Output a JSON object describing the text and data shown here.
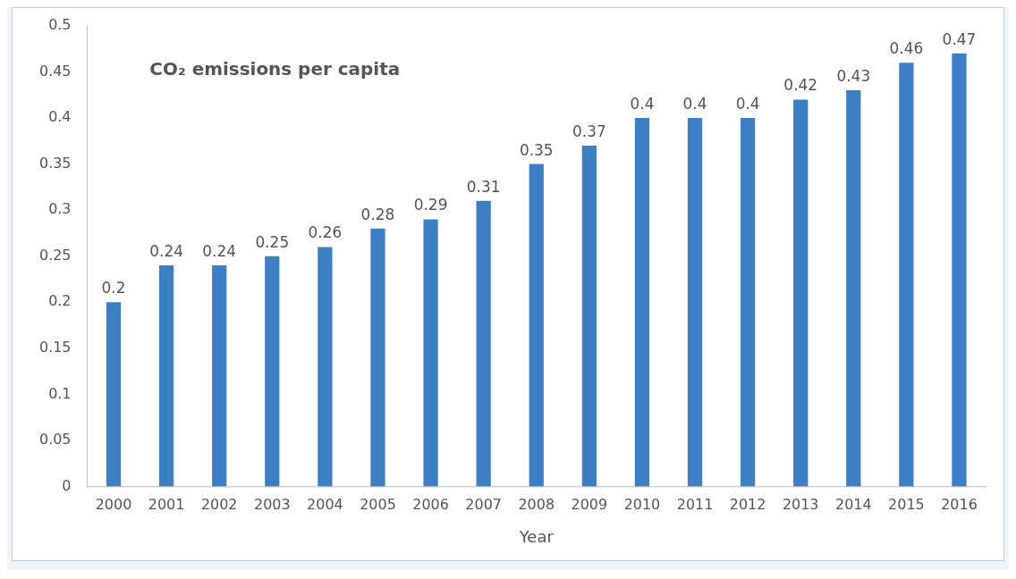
{
  "chart_data": {
    "type": "bar",
    "title": "CO₂ emissions per capita",
    "xlabel": "Year",
    "categories": [
      "2000",
      "2001",
      "2002",
      "2003",
      "2004",
      "2005",
      "2006",
      "2007",
      "2008",
      "2009",
      "2010",
      "2011",
      "2012",
      "2013",
      "2014",
      "2015",
      "2016"
    ],
    "values": [
      0.2,
      0.24,
      0.24,
      0.25,
      0.26,
      0.28,
      0.29,
      0.31,
      0.35,
      0.37,
      0.4,
      0.4,
      0.4,
      0.42,
      0.43,
      0.46,
      0.47
    ],
    "color": "#3d7fc4",
    "ylim": [
      0,
      0.5
    ],
    "yticks": [
      0,
      0.05,
      0.1,
      0.15,
      0.2,
      0.25,
      0.3,
      0.35,
      0.4,
      0.45,
      0.5
    ],
    "data_labels": true,
    "grid": false,
    "legend": false
  }
}
